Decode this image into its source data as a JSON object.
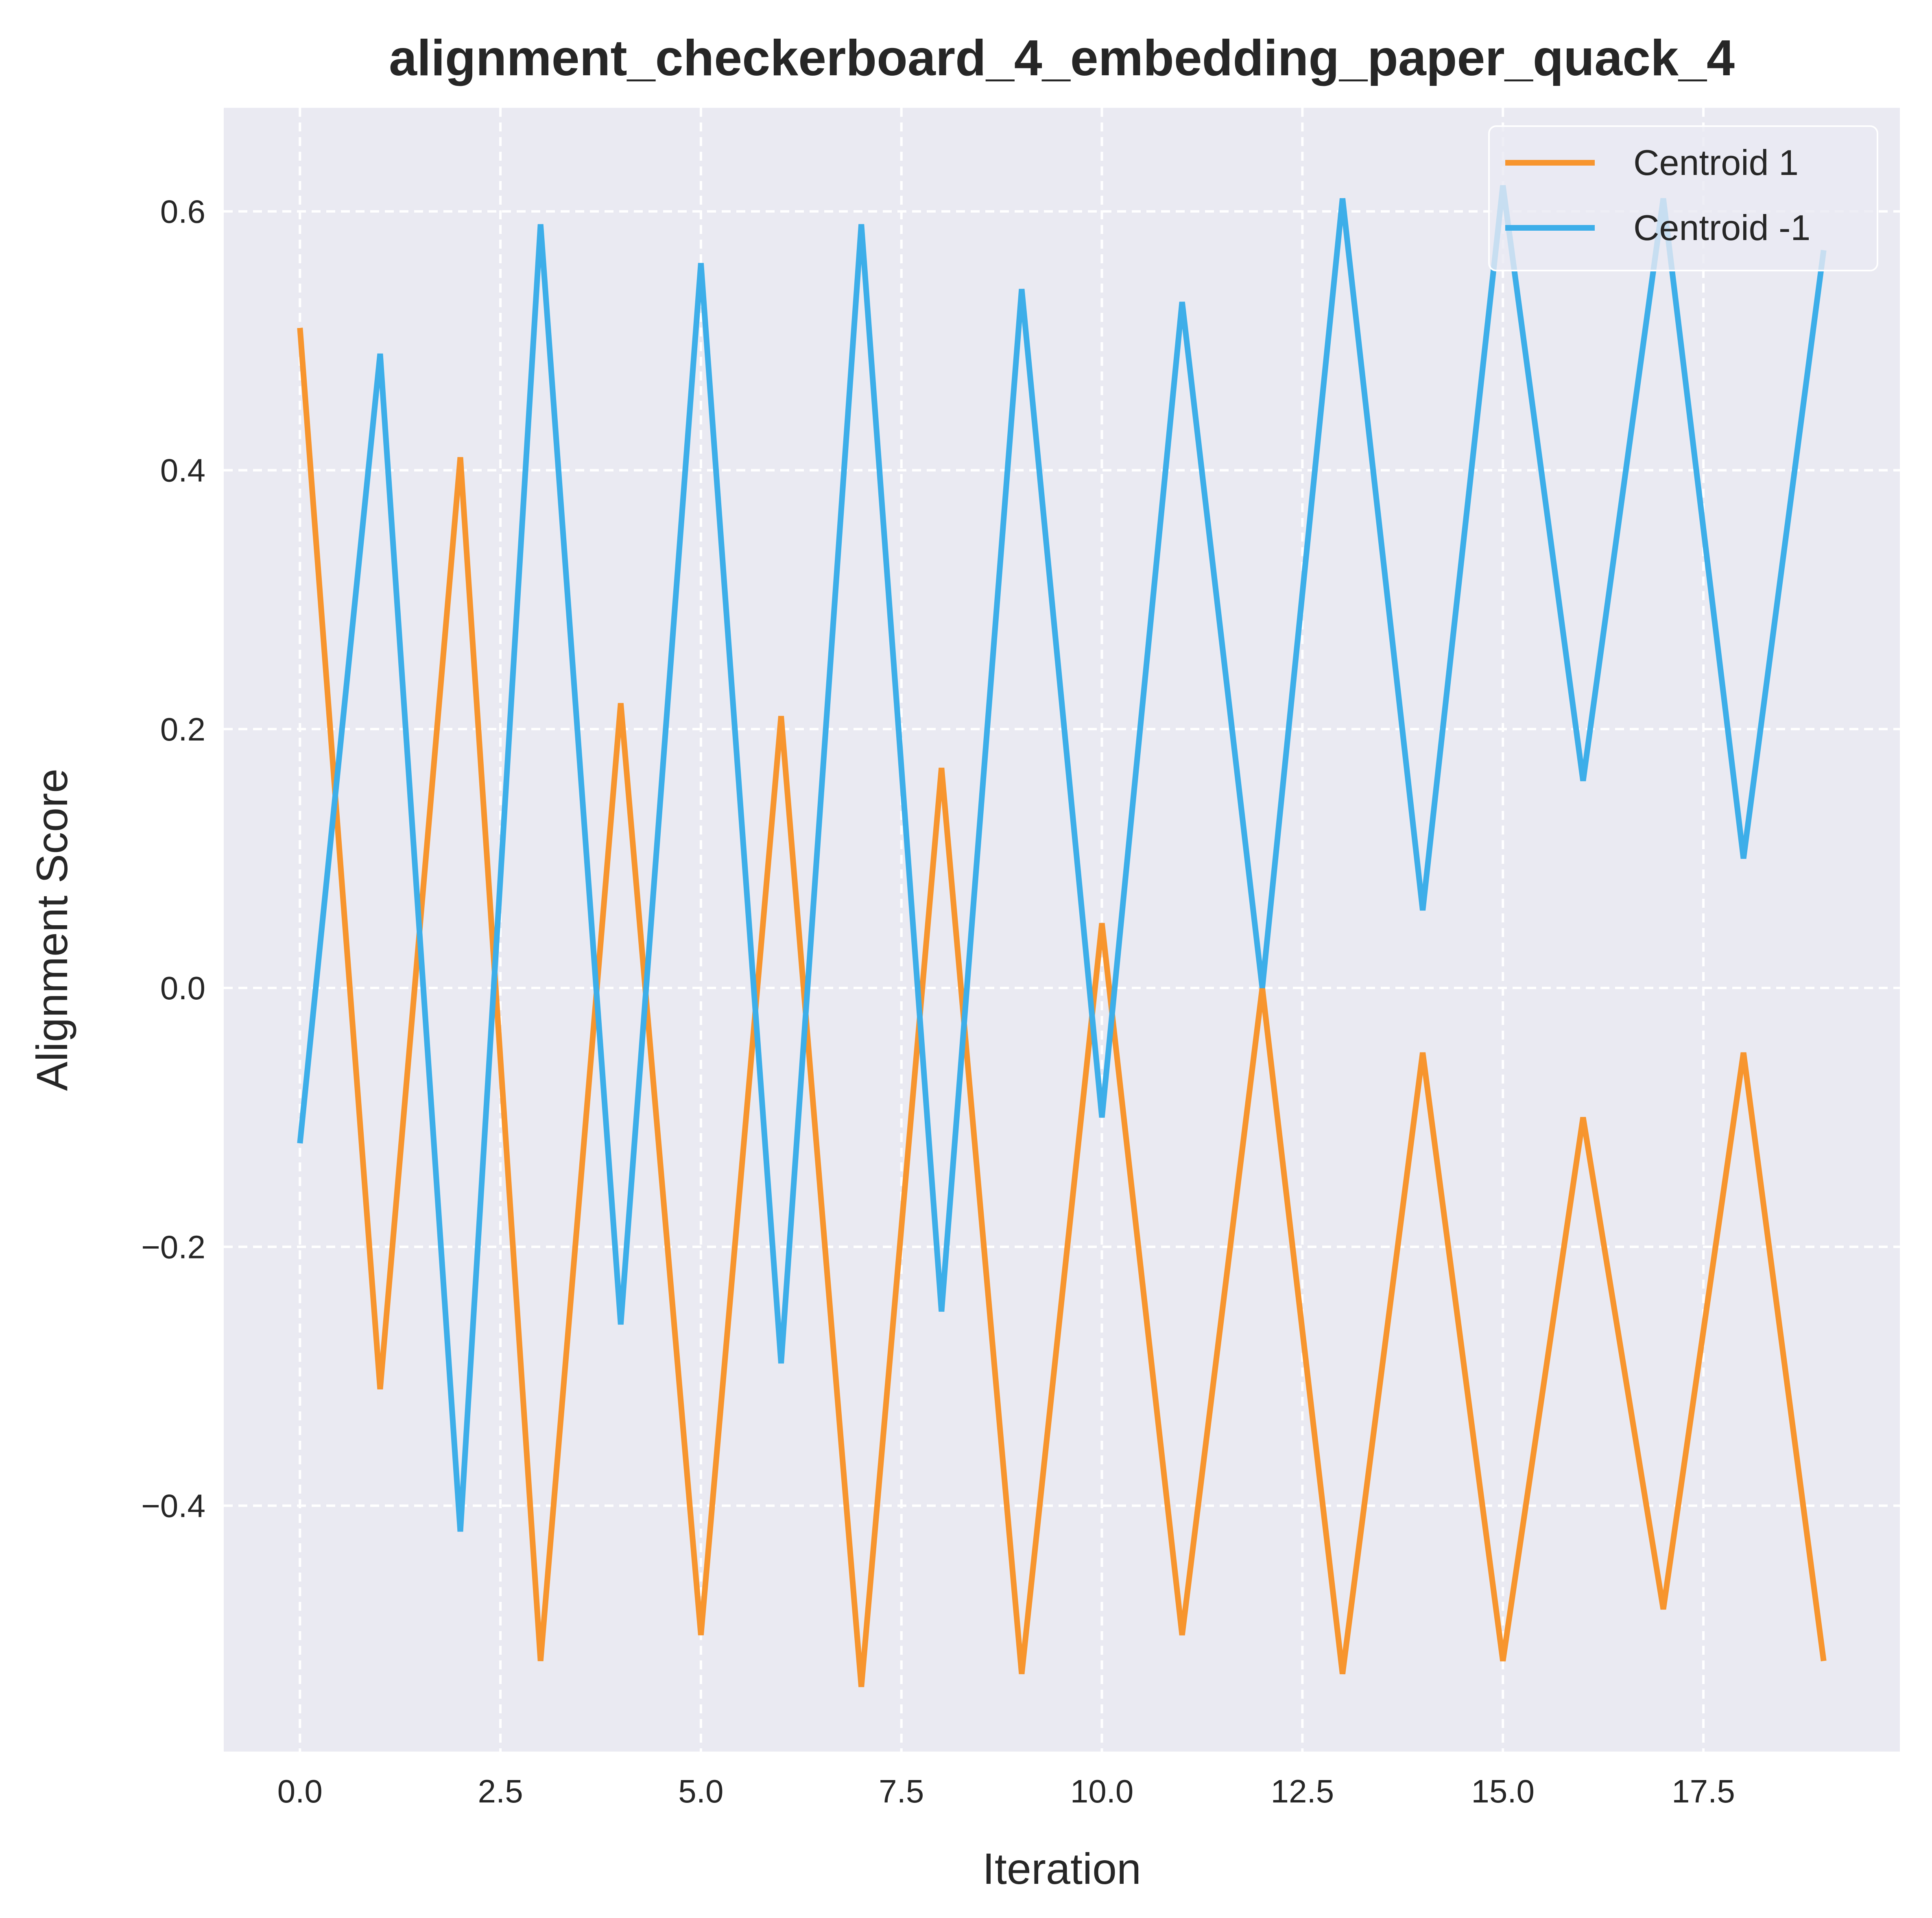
{
  "chart_data": {
    "type": "line",
    "title": "alignment_checkerboard_4_embedding_paper_quack_4",
    "xlabel": "Iteration",
    "ylabel": "Alignment Score",
    "x": [
      0,
      1,
      2,
      3,
      4,
      5,
      6,
      7,
      8,
      9,
      10,
      11,
      12,
      13,
      14,
      15,
      16,
      17,
      18,
      19
    ],
    "xlim": [
      -0.95,
      19.95
    ],
    "ylim": [
      -0.59,
      0.68
    ],
    "xticks": [
      0.0,
      2.5,
      5.0,
      7.5,
      10.0,
      12.5,
      15.0,
      17.5
    ],
    "xtick_labels": [
      "0.0",
      "2.5",
      "5.0",
      "7.5",
      "10.0",
      "12.5",
      "15.0",
      "17.5"
    ],
    "yticks": [
      -0.4,
      -0.2,
      0.0,
      0.2,
      0.4,
      0.6
    ],
    "ytick_labels": [
      "−0.4",
      "−0.2",
      "0.0",
      "0.2",
      "0.4",
      "0.6"
    ],
    "grid": true,
    "legend_position": "top-right",
    "series": [
      {
        "name": "Centroid 1",
        "color": "#F7952E",
        "values": [
          0.51,
          -0.31,
          0.41,
          -0.52,
          0.22,
          -0.5,
          0.21,
          -0.54,
          0.17,
          -0.53,
          0.05,
          -0.5,
          0.0,
          -0.53,
          -0.05,
          -0.52,
          -0.1,
          -0.48,
          -0.05,
          -0.52
        ]
      },
      {
        "name": "Centroid -1",
        "color": "#3DAEE9",
        "values": [
          -0.12,
          0.49,
          -0.42,
          0.59,
          -0.26,
          0.56,
          -0.29,
          0.59,
          -0.25,
          0.54,
          -0.1,
          0.53,
          0.0,
          0.61,
          0.06,
          0.62,
          0.16,
          0.61,
          0.1,
          0.57
        ]
      }
    ]
  }
}
